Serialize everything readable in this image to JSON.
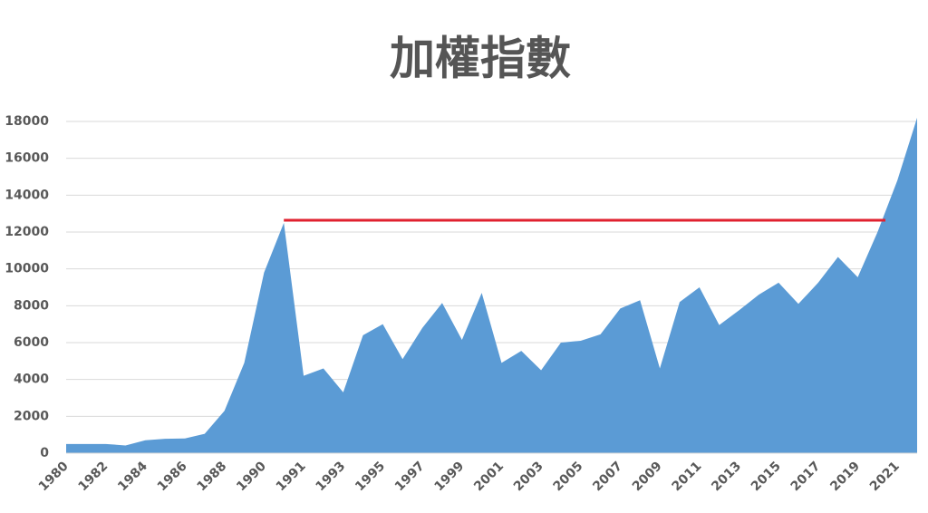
{
  "chart_data": {
    "type": "area",
    "title": "加權指數",
    "categories": [
      "1980",
      null,
      "1982",
      null,
      "1984",
      null,
      "1986",
      null,
      "1988",
      null,
      "1990",
      null,
      "1991",
      null,
      "1993",
      null,
      "1995",
      null,
      "1997",
      null,
      "1999",
      null,
      "2001",
      null,
      "2003",
      null,
      "2005",
      null,
      "2007",
      null,
      "2009",
      null,
      "2011",
      null,
      "2013",
      null,
      "2015",
      null,
      "2017",
      null,
      "2019",
      null,
      "2021",
      null
    ],
    "values": [
      500,
      500,
      500,
      420,
      700,
      780,
      800,
      1050,
      2300,
      4900,
      9800,
      12500,
      4200,
      4600,
      3300,
      6400,
      7000,
      5100,
      6800,
      8150,
      6150,
      8700,
      4900,
      5550,
      4500,
      6000,
      6100,
      6450,
      7850,
      8300,
      4600,
      8200,
      9000,
      6950,
      7750,
      8600,
      9250,
      8100,
      9250,
      10650,
      9550,
      12000,
      14800,
      18200
    ],
    "color": "#5b9bd5",
    "ylim": [
      0,
      18000
    ],
    "yticks": [
      0,
      2000,
      4000,
      6000,
      8000,
      10000,
      12000,
      14000,
      16000,
      18000
    ],
    "grid": true,
    "reference_line": {
      "value": 12640,
      "color": "#e0212f"
    }
  }
}
